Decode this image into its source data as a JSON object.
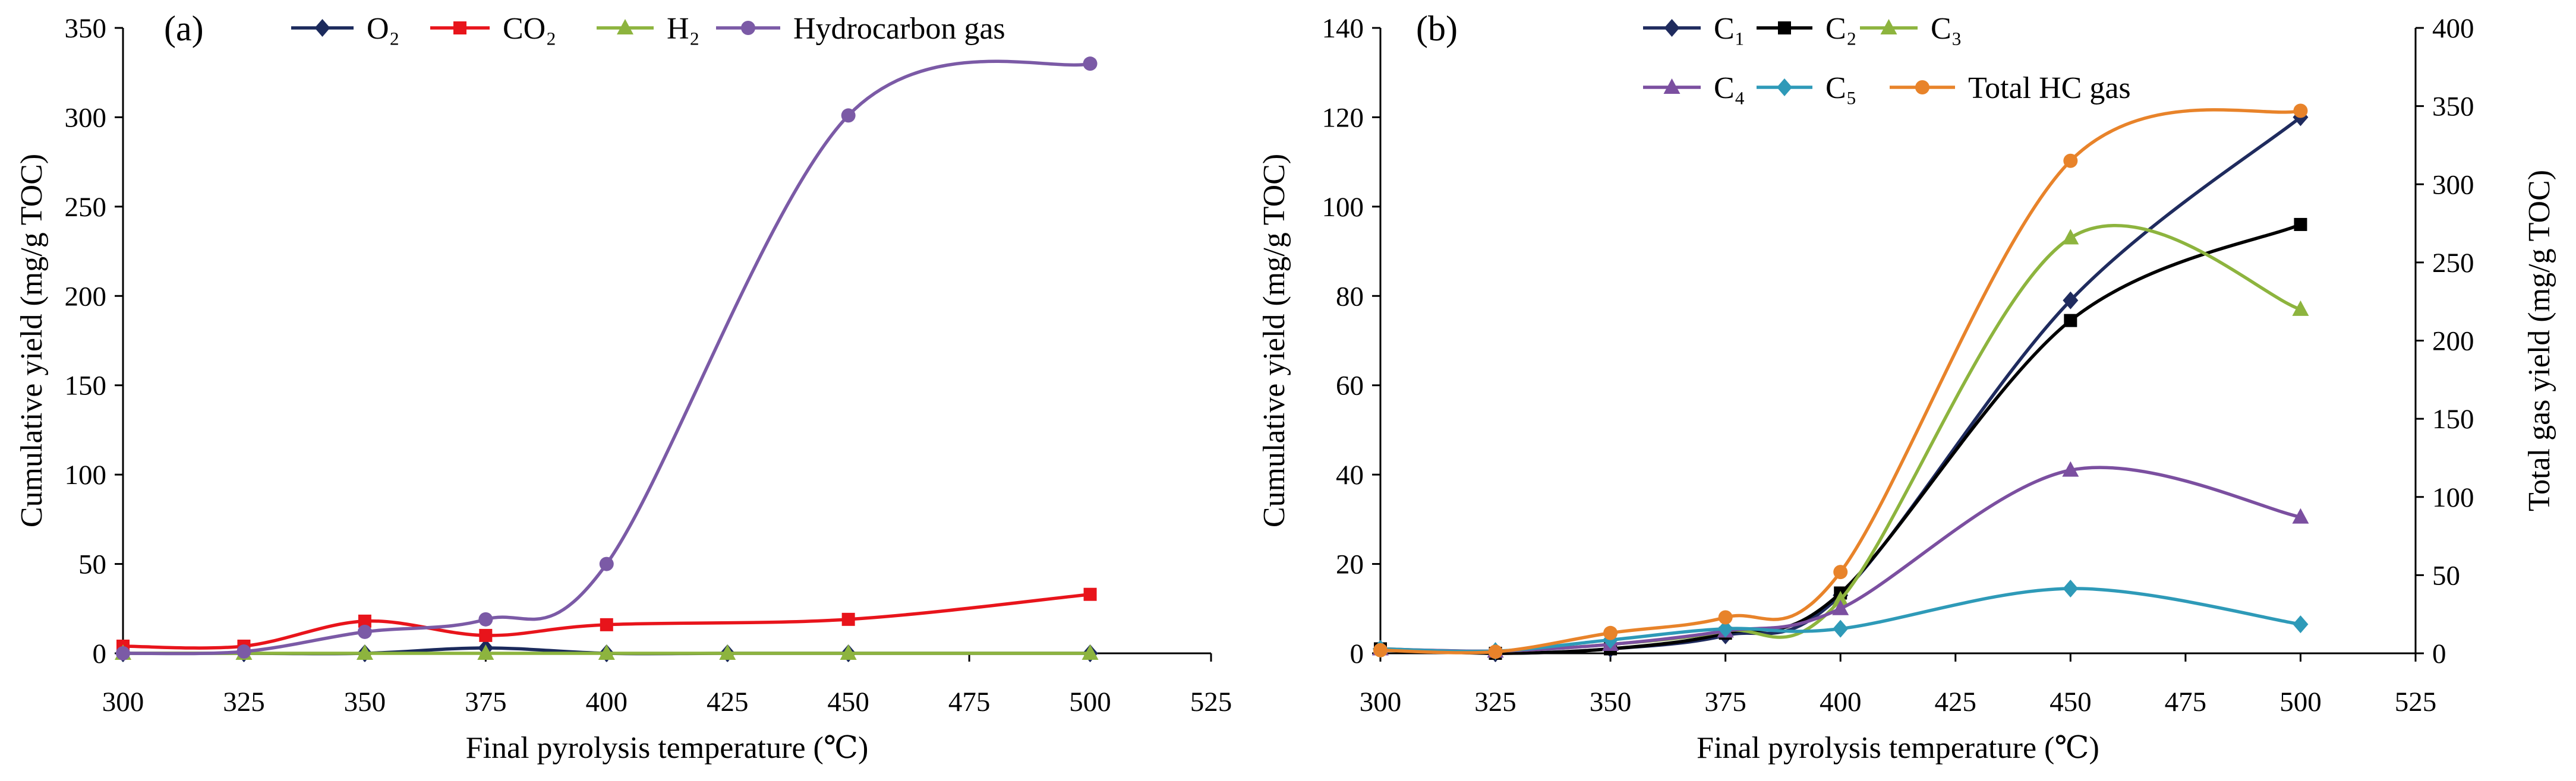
{
  "chart_data": [
    {
      "type": "line",
      "panel_label": "(a)",
      "xlabel": "Final pyrolysis temperature (℃)",
      "ylabel": "Cumulative yield (mg/g TOC)",
      "xlim": [
        300,
        525
      ],
      "ylim": [
        0,
        350
      ],
      "xticks": [
        300,
        325,
        350,
        375,
        400,
        425,
        450,
        475,
        500,
        525
      ],
      "yticks": [
        0,
        50,
        100,
        150,
        200,
        250,
        300,
        350
      ],
      "grid": false,
      "legend": "top",
      "series": [
        {
          "name": "O₂",
          "color": "#1B2A5C",
          "marker": "diamond",
          "x": [
            300,
            325,
            350,
            375,
            400,
            425,
            450,
            500
          ],
          "y": [
            0,
            0,
            0,
            3,
            0,
            0,
            0,
            0
          ]
        },
        {
          "name": "CO₂",
          "color": "#E8141B",
          "marker": "square",
          "x": [
            300,
            325,
            350,
            375,
            400,
            450,
            500
          ],
          "y": [
            4,
            4,
            18,
            10,
            16,
            19,
            33
          ]
        },
        {
          "name": "H₂",
          "color": "#8DB43E",
          "marker": "triangle",
          "x": [
            300,
            325,
            350,
            375,
            400,
            425,
            450,
            500
          ],
          "y": [
            0,
            0,
            0,
            0,
            0,
            0,
            0,
            0
          ]
        },
        {
          "name": "Hydrocarbon gas",
          "color": "#7B5AA6",
          "marker": "circle",
          "x": [
            300,
            325,
            350,
            375,
            400,
            450,
            500
          ],
          "y": [
            0,
            1,
            12,
            19,
            50,
            301,
            330
          ]
        }
      ]
    },
    {
      "type": "line",
      "panel_label": "(b)",
      "xlabel": "Final pyrolysis temperature (℃)",
      "ylabel": "Cumulative yield (mg/g TOC)",
      "ylabel_right": "Total gas yield (mg/g TOC)",
      "xlim": [
        300,
        525
      ],
      "ylim": [
        0,
        140
      ],
      "ylim_right": [
        0,
        400
      ],
      "xticks": [
        300,
        325,
        350,
        375,
        400,
        425,
        450,
        475,
        500,
        525
      ],
      "yticks": [
        0,
        20,
        40,
        60,
        80,
        100,
        120,
        140
      ],
      "yticks_right": [
        0,
        50,
        100,
        150,
        200,
        250,
        300,
        350,
        400
      ],
      "grid": false,
      "legend": "top",
      "series": [
        {
          "name": "C₁",
          "color": "#1F2B5E",
          "marker": "diamond",
          "x": [
            300,
            325,
            350,
            375,
            400,
            450,
            500
          ],
          "y": [
            1,
            0,
            1,
            4,
            13,
            79,
            120
          ]
        },
        {
          "name": "C₂",
          "color": "#000000",
          "marker": "square",
          "x": [
            300,
            325,
            350,
            375,
            400,
            450,
            500
          ],
          "y": [
            1,
            0,
            1,
            4.5,
            13.5,
            74.5,
            96
          ]
        },
        {
          "name": "C₃",
          "color": "#8DB43E",
          "marker": "triangle",
          "x": [
            300,
            325,
            350,
            375,
            400,
            450,
            500
          ],
          "y": [
            1,
            0.5,
            2,
            5,
            12,
            93,
            77
          ]
        },
        {
          "name": "C₄",
          "color": "#7B4FA0",
          "marker": "triangle",
          "x": [
            300,
            325,
            350,
            375,
            400,
            450,
            500
          ],
          "y": [
            1,
            0.5,
            2,
            5,
            10,
            41,
            30.5
          ]
        },
        {
          "name": "C₅",
          "color": "#2E9AB8",
          "marker": "diamond",
          "x": [
            300,
            325,
            350,
            375,
            400,
            450,
            500
          ],
          "y": [
            1,
            0.5,
            3,
            5.5,
            5.5,
            14.5,
            6.5
          ]
        }
      ],
      "series_right": [
        {
          "name": "Total HC gas",
          "color": "#E8832A",
          "marker": "circle",
          "x": [
            300,
            325,
            350,
            375,
            400,
            450,
            500
          ],
          "y": [
            2,
            1,
            13,
            23,
            52,
            315,
            347
          ]
        }
      ]
    }
  ]
}
